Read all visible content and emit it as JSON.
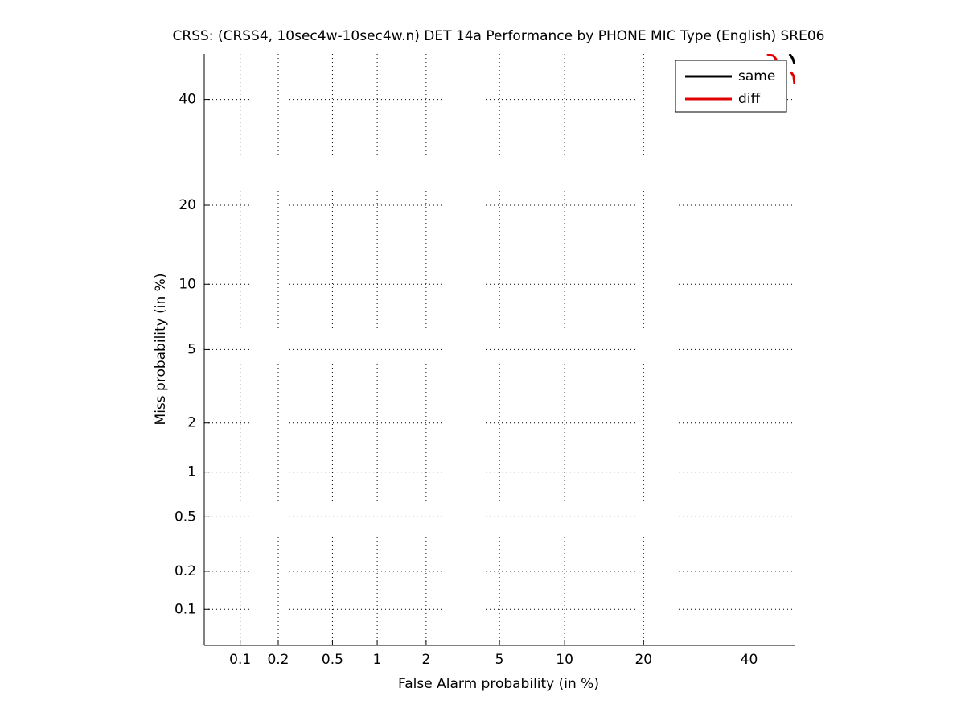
{
  "chart_data": {
    "type": "line",
    "title": "CRSS: (CRSS4, 10sec4w-10sec4w.n) DET 14a Performance by PHONE MIC Type (English) SRE06",
    "xlabel": "False Alarm probability (in %)",
    "ylabel": "Miss probability (in %)",
    "scale": "normal-deviate",
    "xlim": [
      0.05,
      50
    ],
    "ylim": [
      0.05,
      50
    ],
    "xticks": [
      0.1,
      0.2,
      0.5,
      1,
      2,
      5,
      10,
      20,
      40
    ],
    "yticks": [
      0.1,
      0.2,
      0.5,
      1,
      2,
      5,
      10,
      20,
      40
    ],
    "grid": true,
    "legend": "top-right",
    "series": [
      {
        "name": "same",
        "color": "#000000",
        "x": [
          48.9,
          49.6,
          50
        ],
        "y": [
          50,
          49.0,
          47.8
        ]
      },
      {
        "name": "diff",
        "color": "#e00000",
        "x": [
          43.9,
          45.3,
          46.0,
          null,
          49.2,
          49.8,
          50
        ],
        "y": [
          50,
          49.6,
          48.7,
          null,
          46.0,
          45.1,
          43.3
        ]
      }
    ]
  }
}
